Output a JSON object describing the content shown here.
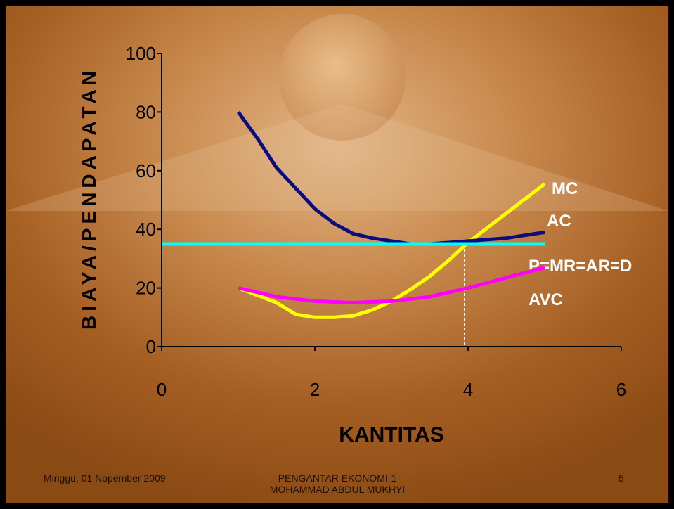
{
  "chart_data": {
    "type": "line",
    "x_label": "KANTITAS",
    "y_label": "BIAYA/PENDAPATAN",
    "xlim": [
      0,
      6
    ],
    "xticks": [
      0,
      2,
      4,
      6
    ],
    "ylim": [
      0,
      100
    ],
    "yticks": [
      0,
      20,
      40,
      60,
      80,
      100
    ],
    "series": [
      {
        "name": "MC",
        "color": "#ffff00",
        "x": [
          1,
          1.25,
          1.5,
          1.75,
          2,
          2.25,
          2.5,
          2.75,
          3,
          3.25,
          3.5,
          3.75,
          4,
          4.25,
          4.5,
          4.75,
          5
        ],
        "values": [
          20,
          17.5,
          15,
          11,
          10,
          10,
          10.5,
          12.5,
          15.5,
          19.5,
          24,
          29.5,
          35.5,
          40.5,
          45.5,
          50.5,
          55.5
        ]
      },
      {
        "name": "AC",
        "color": "#0b0b80",
        "x": [
          1,
          1.25,
          1.5,
          1.75,
          2,
          2.25,
          2.5,
          2.75,
          3,
          3.25,
          3.5,
          3.75,
          4,
          4.25,
          4.5,
          4.75,
          5
        ],
        "values": [
          80,
          71,
          61,
          54,
          47,
          42,
          38.5,
          37,
          36,
          35,
          35,
          35.5,
          36,
          36.5,
          37,
          38,
          39
        ]
      },
      {
        "name": "P=MR=AR=D",
        "color": "#00ffff",
        "x": [
          0,
          5
        ],
        "values": [
          35,
          35
        ]
      },
      {
        "name": "AVC",
        "color": "#ff00ff",
        "x": [
          1,
          1.5,
          2,
          2.5,
          3,
          3.5,
          4,
          4.5,
          5
        ],
        "values": [
          20,
          17,
          15.5,
          15,
          15.5,
          17,
          20,
          23.5,
          27
        ]
      }
    ],
    "equilibrium": {
      "x": 3.95,
      "y": 35
    }
  },
  "footer": {
    "date": "Minggu, 01 Nopember 2009",
    "course": "PENGANTAR EKONOMI-1",
    "author": "MOHAMMAD ABDUL MUKHYI",
    "page": "5"
  }
}
